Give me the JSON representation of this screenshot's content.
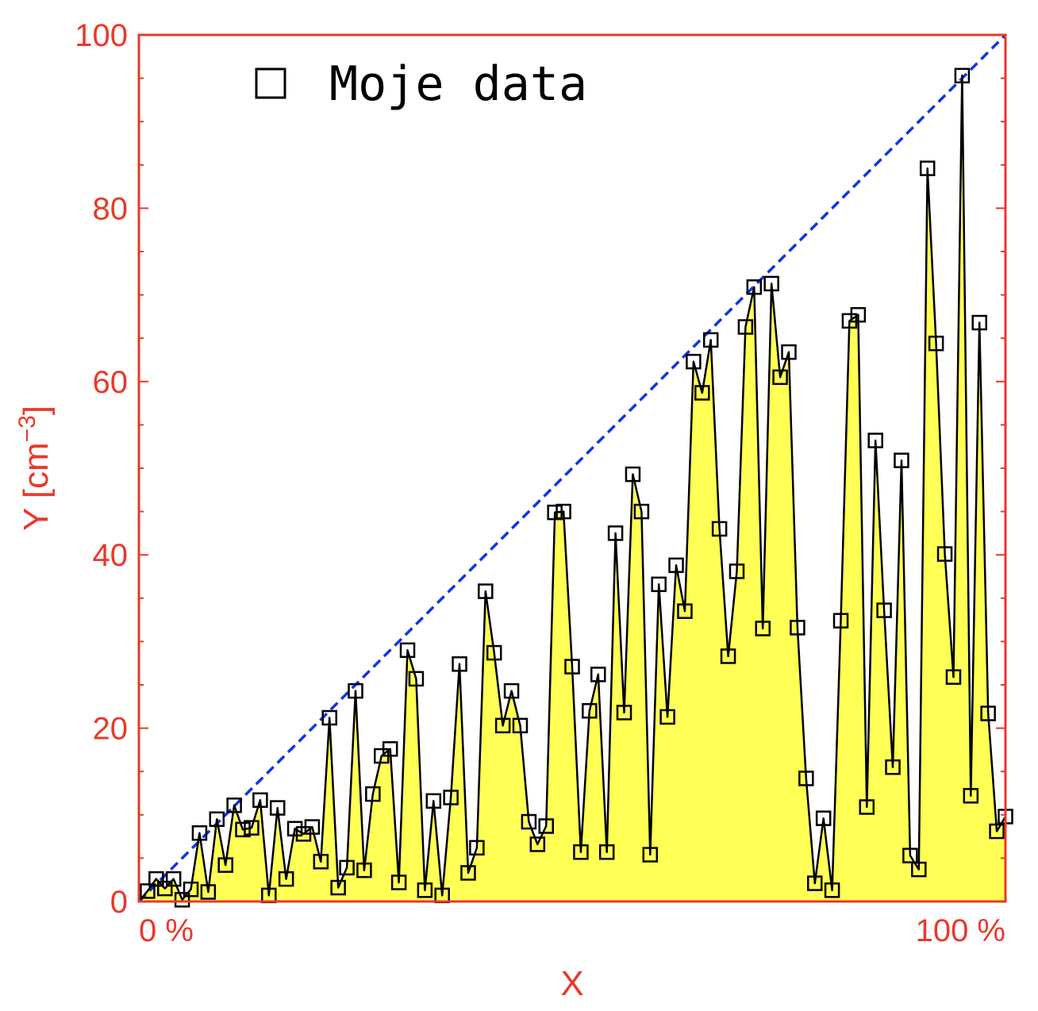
{
  "chart_data": {
    "type": "area",
    "xlabel": "X",
    "ylabel_main": "Y [cm",
    "ylabel_sup": "−3",
    "ylabel_close": "]",
    "xlim": [
      0,
      100
    ],
    "ylim": [
      0,
      100
    ],
    "x_tick_labels": [
      {
        "x": 0,
        "label": "0 %"
      },
      {
        "x": 100,
        "label": "100 %"
      }
    ],
    "y_ticks": [
      0,
      20,
      40,
      60,
      80,
      100
    ],
    "grid": false,
    "legend": {
      "position": "top-left",
      "label": "Moje data",
      "marker": "open-square"
    },
    "reference_line": {
      "from": [
        0,
        0
      ],
      "to": [
        100,
        100
      ],
      "style": "dashed"
    },
    "series": [
      {
        "name": "Moje data",
        "x": [
          1,
          2,
          3,
          4,
          5,
          6,
          7,
          8,
          9,
          10,
          11,
          12,
          13,
          14,
          15,
          16,
          17,
          18,
          19,
          20,
          21,
          22,
          23,
          24,
          25,
          26,
          27,
          28,
          29,
          30,
          31,
          32,
          33,
          34,
          35,
          36,
          37,
          38,
          39,
          40,
          41,
          42,
          43,
          44,
          45,
          46,
          47,
          48,
          49,
          50,
          51,
          52,
          53,
          54,
          55,
          56,
          57,
          58,
          59,
          60,
          61,
          62,
          63,
          64,
          65,
          66,
          67,
          68,
          69,
          70,
          71,
          72,
          73,
          74,
          75,
          76,
          77,
          78,
          79,
          80,
          81,
          82,
          83,
          84,
          85,
          86,
          87,
          88,
          89,
          90,
          91,
          92,
          93,
          94,
          95,
          96,
          97,
          98,
          99,
          100
        ],
        "y": [
          1.2,
          2.6,
          1.5,
          2.6,
          0.2,
          1.4,
          7.9,
          1.1,
          9.5,
          4.2,
          11.1,
          8.3,
          8.5,
          11.7,
          0.7,
          10.8,
          2.6,
          8.4,
          7.8,
          8.6,
          4.6,
          21.2,
          1.6,
          3.9,
          24.3,
          3.6,
          12.4,
          16.8,
          17.6,
          2.2,
          29.0,
          25.7,
          1.3,
          11.6,
          0.7,
          12.0,
          27.4,
          3.3,
          6.2,
          35.8,
          28.7,
          20.3,
          24.3,
          20.3,
          9.2,
          6.6,
          8.7,
          44.9,
          45.0,
          27.1,
          5.7,
          22.0,
          26.2,
          5.7,
          42.5,
          21.8,
          49.3,
          45.0,
          5.4,
          36.6,
          21.3,
          38.8,
          33.5,
          62.3,
          58.7,
          64.8,
          43.0,
          28.3,
          38.1,
          66.3,
          70.9,
          31.5,
          71.3,
          60.5,
          63.4,
          31.6,
          14.2,
          2.1,
          9.6,
          1.3,
          32.4,
          67.0,
          67.7,
          10.9,
          53.2,
          33.6,
          15.5,
          50.9,
          5.3,
          3.7,
          84.6,
          64.4,
          40.1,
          25.9,
          95.3,
          12.2,
          66.8,
          21.7,
          8.1,
          9.8
        ]
      }
    ],
    "colors": {
      "frame": "#e8392a",
      "fill": "#ffff55",
      "line": "#000000",
      "reference": "#1034e6",
      "marker_edge": "#000000",
      "marker_face": "#ffffff"
    }
  }
}
